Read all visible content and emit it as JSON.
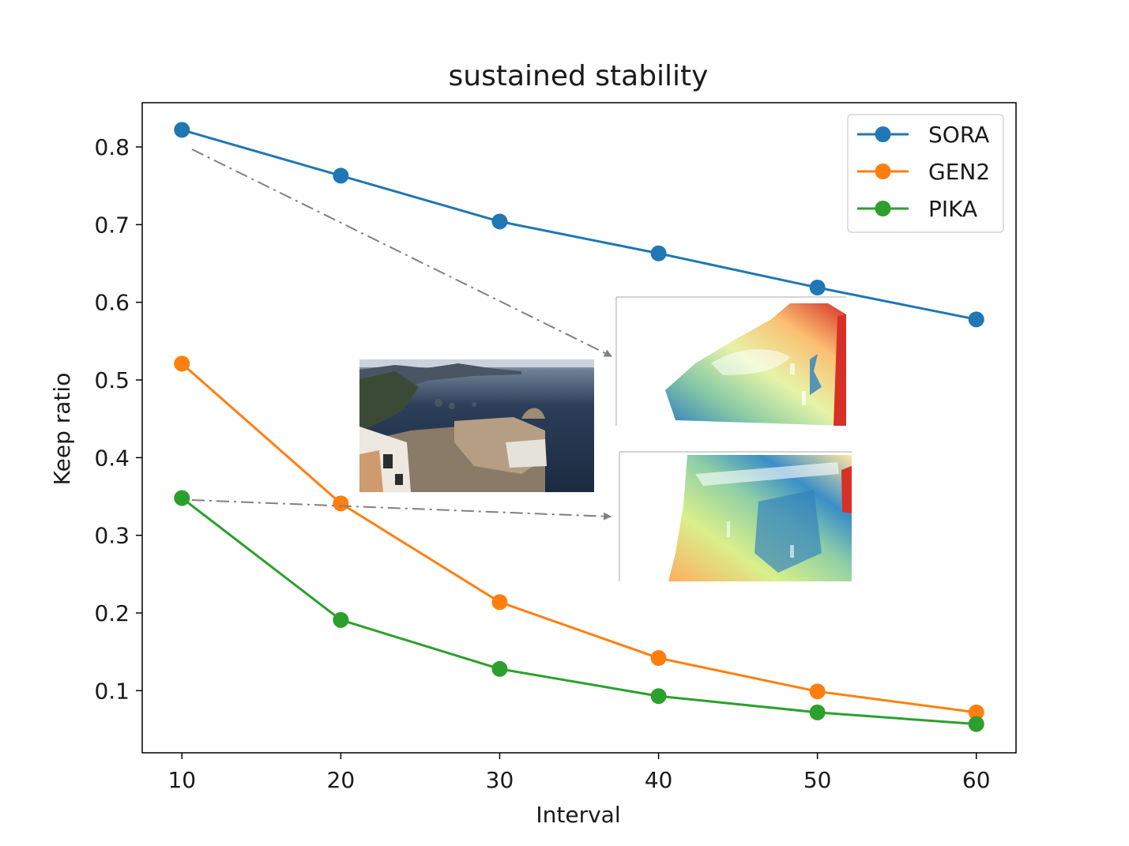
{
  "chart_data": {
    "type": "line",
    "title": "sustained stability",
    "xlabel": "Interval",
    "ylabel": "Keep ratio",
    "x": [
      10,
      20,
      30,
      40,
      50,
      60
    ],
    "xticks": [
      "10",
      "20",
      "30",
      "40",
      "50",
      "60"
    ],
    "yticks": [
      "0.1",
      "0.2",
      "0.3",
      "0.4",
      "0.5",
      "0.6",
      "0.7",
      "0.8"
    ],
    "xlim": [
      7.5,
      62.5
    ],
    "ylim": [
      0.02,
      0.857
    ],
    "grid": false,
    "legend_position": "top-right",
    "series": [
      {
        "name": "SORA",
        "color": "#1f77b4",
        "values": [
          0.822,
          0.763,
          0.704,
          0.663,
          0.619,
          0.578
        ]
      },
      {
        "name": "GEN2",
        "color": "#ff7f0e",
        "values": [
          0.521,
          0.341,
          0.214,
          0.142,
          0.099,
          0.072
        ]
      },
      {
        "name": "PIKA",
        "color": "#2ca02c",
        "values": [
          0.348,
          0.191,
          0.128,
          0.093,
          0.072,
          0.057
        ]
      }
    ],
    "annotations": [
      {
        "kind": "dash-dot-arrow",
        "from_series": "SORA",
        "target": "depth-map-top",
        "color": "#808080"
      },
      {
        "kind": "dash-dot-arrow",
        "from_series": "PIKA",
        "target": "depth-map-bottom",
        "color": "#808080"
      }
    ],
    "inset_images": [
      "coastal-video-frame",
      "depth-map-top",
      "depth-map-bottom"
    ]
  }
}
